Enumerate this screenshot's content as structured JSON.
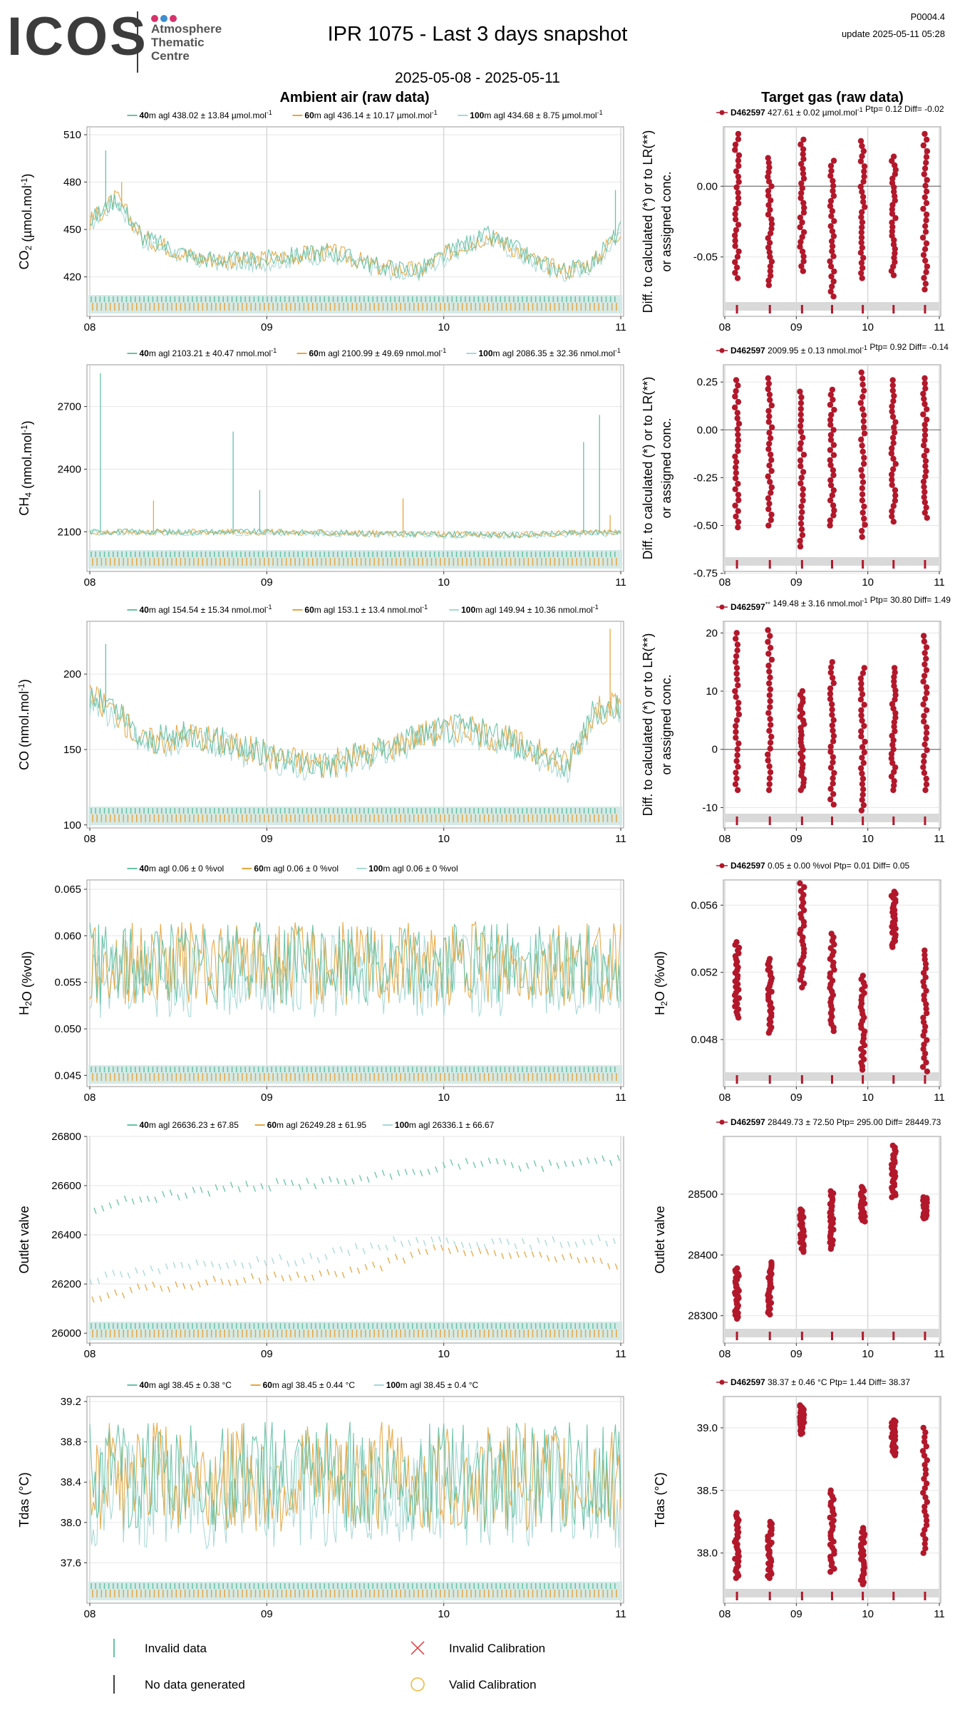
{
  "header": {
    "logo_text": "ICOS",
    "logo_subtitle": [
      "Atmosphere",
      "Thematic",
      "Centre"
    ],
    "logo_dot_colors": [
      "#d6336c",
      "#3b8ed0",
      "#d6336c"
    ],
    "title": "IPR 1075 - Last 3 days snapshot",
    "date_range": "2025-05-08 - 2025-05-11",
    "version": "P0004.4",
    "update": "update  2025-05-11 05:28",
    "left_heading": "Ambient air (raw data)",
    "right_heading": "Target gas (raw data)"
  },
  "colors": {
    "m40": "#66c2a5",
    "m60": "#e6a640",
    "m100": "#a6d8d4",
    "target": "#b2182b",
    "grid": "#e6e6e6",
    "band": "#d5eae7",
    "band_gray": "#d9d9d9"
  },
  "chart_data": [
    {
      "type": "line",
      "id": "co2-ambient",
      "ylabel_main": "CO",
      "ylabel_sub": "2",
      "ylabel_unit": " (µmol.mol",
      "ylabel_sup": "-1",
      "ylabel_end": ")",
      "x_ticks": [
        "08",
        "09",
        "10",
        "11"
      ],
      "ylim": [
        395,
        515
      ],
      "y_ticks": [
        420,
        450,
        480,
        510
      ],
      "legend": [
        {
          "height": "40",
          "text": "m agl 438.02 ± 13.84 µmol.mol",
          "sup": "-1"
        },
        {
          "height": "60",
          "text": "m agl 436.14 ± 10.17 µmol.mol",
          "sup": "-1"
        },
        {
          "height": "100",
          "text": "m agl 434.68 ± 8.75 µmol.mol",
          "sup": "-1"
        }
      ],
      "profile": [
        [
          0,
          455
        ],
        [
          0.05,
          470
        ],
        [
          0.1,
          445
        ],
        [
          0.2,
          432
        ],
        [
          0.3,
          430
        ],
        [
          0.45,
          436
        ],
        [
          0.55,
          426
        ],
        [
          0.62,
          424
        ],
        [
          0.7,
          440
        ],
        [
          0.75,
          446
        ],
        [
          0.8,
          438
        ],
        [
          0.85,
          428
        ],
        [
          0.9,
          424
        ],
        [
          0.95,
          430
        ],
        [
          1,
          450
        ]
      ],
      "noise": 6,
      "spikes": [
        [
          0.03,
          500
        ],
        [
          0.06,
          480
        ],
        [
          0.99,
          475
        ]
      ]
    },
    {
      "type": "line",
      "id": "ch4-ambient",
      "ylabel_main": "CH",
      "ylabel_sub": "4",
      "ylabel_unit": " (nmol.mol",
      "ylabel_sup": "-1",
      "ylabel_end": ")",
      "x_ticks": [
        "08",
        "09",
        "10",
        "11"
      ],
      "ylim": [
        1910,
        2900
      ],
      "y_ticks": [
        2100,
        2400,
        2700
      ],
      "legend": [
        {
          "height": "40",
          "text": "m agl 2103.21 ± 40.47 nmol.mol",
          "sup": "-1"
        },
        {
          "height": "60",
          "text": "m agl 2100.99 ± 49.69 nmol.mol",
          "sup": "-1"
        },
        {
          "height": "100",
          "text": "m agl 2086.35 ± 32.36 nmol.mol",
          "sup": "-1"
        }
      ],
      "profile": [
        [
          0,
          2100
        ],
        [
          0.3,
          2100
        ],
        [
          0.6,
          2090
        ],
        [
          0.8,
          2085
        ],
        [
          1,
          2100
        ]
      ],
      "noise": 15,
      "spikes": [
        [
          0.02,
          2860
        ],
        [
          0.12,
          2250
        ],
        [
          0.27,
          2580
        ],
        [
          0.32,
          2300
        ],
        [
          0.59,
          2260
        ],
        [
          0.93,
          2530
        ],
        [
          0.96,
          2660
        ],
        [
          0.98,
          2180
        ]
      ]
    },
    {
      "type": "line",
      "id": "co-ambient",
      "ylabel_main": "CO",
      "ylabel_sub": "",
      "ylabel_unit": " (nmol.mol",
      "ylabel_sup": "-1",
      "ylabel_end": ")",
      "x_ticks": [
        "08",
        "09",
        "10",
        "11"
      ],
      "ylim": [
        98,
        235
      ],
      "y_ticks": [
        100,
        150,
        200
      ],
      "legend": [
        {
          "height": "40",
          "text": "m agl 154.54 ± 15.34 nmol.mol",
          "sup": "-1"
        },
        {
          "height": "60",
          "text": "m agl 153.1 ± 13.4 nmol.mol",
          "sup": "-1"
        },
        {
          "height": "100",
          "text": "m agl 149.94 ± 10.36 nmol.mol",
          "sup": "-1"
        }
      ],
      "profile": [
        [
          0,
          185
        ],
        [
          0.05,
          175
        ],
        [
          0.1,
          155
        ],
        [
          0.2,
          160
        ],
        [
          0.35,
          145
        ],
        [
          0.45,
          140
        ],
        [
          0.55,
          150
        ],
        [
          0.62,
          160
        ],
        [
          0.7,
          165
        ],
        [
          0.8,
          155
        ],
        [
          0.9,
          140
        ],
        [
          0.95,
          175
        ],
        [
          1,
          180
        ]
      ],
      "noise": 10,
      "spikes": [
        [
          0.03,
          220
        ],
        [
          0.98,
          230
        ]
      ]
    },
    {
      "type": "line",
      "id": "h2o-ambient",
      "ylabel_main": "H",
      "ylabel_sub": "2",
      "ylabel_unit": "O (%vol)",
      "ylabel_sup": "",
      "ylabel_end": "",
      "x_ticks": [
        "08",
        "09",
        "10",
        "11"
      ],
      "ylim": [
        0.0438,
        0.066
      ],
      "y_ticks": [
        0.045,
        0.05,
        0.055,
        0.06,
        0.065
      ],
      "y_tick_labels": [
        "0.045",
        "0.050",
        "0.055",
        "0.060",
        "0.065"
      ],
      "legend": [
        {
          "height": "40",
          "text": "m agl 0.06 ± 0 %vol",
          "sup": ""
        },
        {
          "height": "60",
          "text": "m agl 0.06 ± 0 %vol",
          "sup": ""
        },
        {
          "height": "100",
          "text": "m agl 0.06 ± 0 %vol",
          "sup": ""
        }
      ],
      "profile": [
        [
          0,
          0.057
        ],
        [
          0.5,
          0.057
        ],
        [
          1,
          0.057
        ]
      ],
      "noise": 0.0045,
      "spikes": []
    },
    {
      "type": "line",
      "id": "outlet-ambient",
      "ylabel_main": "Outlet valve",
      "ylabel_sub": "",
      "ylabel_unit": "",
      "ylabel_sup": "",
      "ylabel_end": "",
      "x_ticks": [
        "08",
        "09",
        "10",
        "11"
      ],
      "ylim": [
        25960,
        26800
      ],
      "y_ticks": [
        26000,
        26200,
        26400,
        26600,
        26800
      ],
      "legend": [
        {
          "height": "40",
          "text": "m agl 26636.23 ± 67.85",
          "sup": ""
        },
        {
          "height": "60",
          "text": "m agl 26249.28 ± 61.95",
          "sup": ""
        },
        {
          "height": "100",
          "text": "m agl 26336.1 ± 66.67",
          "sup": ""
        }
      ],
      "levels": {
        "m40": [
          [
            0,
            26500
          ],
          [
            0.1,
            26550
          ],
          [
            0.3,
            26600
          ],
          [
            0.5,
            26620
          ],
          [
            0.7,
            26690
          ],
          [
            0.85,
            26680
          ],
          [
            1,
            26710
          ]
        ],
        "m60": [
          [
            0,
            26130
          ],
          [
            0.1,
            26180
          ],
          [
            0.3,
            26220
          ],
          [
            0.5,
            26250
          ],
          [
            0.65,
            26340
          ],
          [
            0.8,
            26320
          ],
          [
            1,
            26280
          ]
        ],
        "m100": [
          [
            0,
            26220
          ],
          [
            0.2,
            26280
          ],
          [
            0.4,
            26300
          ],
          [
            0.6,
            26380
          ],
          [
            0.8,
            26360
          ],
          [
            1,
            26380
          ]
        ]
      },
      "noise": 30,
      "spikes": []
    },
    {
      "type": "line",
      "id": "tdas-ambient",
      "ylabel_main": "Tdas (°C)",
      "ylabel_sub": "",
      "ylabel_unit": "",
      "ylabel_sup": "",
      "ylabel_end": "",
      "x_ticks": [
        "08",
        "09",
        "10",
        "11"
      ],
      "ylim": [
        37.2,
        39.25
      ],
      "y_ticks": [
        37.6,
        38.0,
        38.4,
        38.8,
        39.2
      ],
      "y_tick_labels": [
        "37.6",
        "38.0",
        "38.4",
        "38.8",
        "39.2"
      ],
      "legend": [
        {
          "height": "40",
          "text": "m agl 38.45 ± 0.38 °C",
          "sup": ""
        },
        {
          "height": "60",
          "text": "m agl 38.45 ± 0.44 °C",
          "sup": ""
        },
        {
          "height": "100",
          "text": "m agl 38.45 ± 0.4 °C",
          "sup": ""
        }
      ],
      "profile": [
        [
          0,
          38.45
        ],
        [
          1,
          38.45
        ]
      ],
      "noise": 0.55,
      "spikes": []
    },
    {
      "type": "scatter",
      "id": "co2-target",
      "ylabel_lines": [
        "Diff. to calculated (*) or to LR(**)",
        "or assigned conc."
      ],
      "x_ticks": [
        "08",
        "09",
        "10",
        "11"
      ],
      "ylim": [
        -0.092,
        0.042
      ],
      "y_ticks": [
        -0.05,
        0.0
      ],
      "y_tick_labels": [
        "-0.05",
        "0.00"
      ],
      "zero_line": true,
      "legend": {
        "id": "D462597",
        "sup": "",
        "text": " 427.61 ± 0.02 µmol.mol",
        "unit_sup": "-1",
        "tail": " Ptp= 0.12 Diff= -0.02"
      },
      "clusters": [
        [
          0.17,
          -0.065,
          0.037
        ],
        [
          0.63,
          -0.07,
          0.02
        ],
        [
          1.08,
          -0.06,
          0.033
        ],
        [
          1.5,
          -0.078,
          0.018
        ],
        [
          1.93,
          -0.065,
          0.032
        ],
        [
          2.36,
          -0.063,
          0.021
        ],
        [
          2.8,
          -0.073,
          0.037
        ]
      ]
    },
    {
      "type": "scatter",
      "id": "ch4-target",
      "ylabel_lines": [
        "Diff. to calculated (*) or to LR(**)",
        "or assigned conc."
      ],
      "x_ticks": [
        "08",
        "09",
        "10",
        "11"
      ],
      "ylim": [
        -0.74,
        0.34
      ],
      "y_ticks": [
        -0.75,
        -0.5,
        -0.25,
        0.0,
        0.25
      ],
      "y_tick_labels": [
        "-0.75",
        "-0.50",
        "-0.25",
        "0.00",
        "0.25"
      ],
      "zero_line": true,
      "legend": {
        "id": "D462597",
        "sup": "",
        "text": " 2009.95 ± 0.13 nmol.mol",
        "unit_sup": "-1",
        "tail": " Ptp= 0.92 Diff= -0.14"
      },
      "clusters": [
        [
          0.17,
          -0.51,
          0.26
        ],
        [
          0.63,
          -0.5,
          0.27
        ],
        [
          1.08,
          -0.61,
          0.2
        ],
        [
          1.5,
          -0.5,
          0.21
        ],
        [
          1.93,
          -0.56,
          0.3
        ],
        [
          2.36,
          -0.48,
          0.26
        ],
        [
          2.8,
          -0.46,
          0.27
        ]
      ]
    },
    {
      "type": "scatter",
      "id": "co-target",
      "ylabel_lines": [
        "Diff. to calculated (*) or to LR(**)",
        "or assigned conc."
      ],
      "x_ticks": [
        "08",
        "09",
        "10",
        "11"
      ],
      "ylim": [
        -13.5,
        22
      ],
      "y_ticks": [
        -10,
        0,
        10,
        20
      ],
      "y_tick_labels": [
        "-10",
        "0",
        "10",
        "20"
      ],
      "zero_line": true,
      "legend": {
        "id": "D462597",
        "sup": "**",
        "text": " 149.48 ± 3.16 nmol.mol",
        "unit_sup": "-1",
        "tail": " Ptp= 30.80 Diff= 1.49"
      },
      "clusters": [
        [
          0.17,
          -7,
          20
        ],
        [
          0.63,
          -7,
          20.5
        ],
        [
          1.08,
          -7,
          10
        ],
        [
          1.5,
          -9.5,
          15
        ],
        [
          1.93,
          -10.5,
          14
        ],
        [
          2.36,
          -7,
          14
        ],
        [
          2.8,
          -7,
          19.5
        ]
      ]
    },
    {
      "type": "scatter",
      "id": "h2o-target",
      "ylabel_main": "H",
      "ylabel_sub": "2",
      "ylabel_unit": "O (%vol)",
      "x_ticks": [
        "08",
        "09",
        "10",
        "11"
      ],
      "ylim": [
        0.0452,
        0.0575
      ],
      "y_ticks": [
        0.048,
        0.052,
        0.056
      ],
      "y_tick_labels": [
        "0.048",
        "0.052",
        "0.056"
      ],
      "zero_line": false,
      "legend": {
        "id": "D462597",
        "sup": "",
        "text": " 0.05 ± 0.00 %vol",
        "unit_sup": "",
        "tail": " Ptp= 0.01 Diff= 0.05"
      },
      "clusters": [
        [
          0.17,
          0.0493,
          0.0538
        ],
        [
          0.63,
          0.0484,
          0.0528
        ],
        [
          1.08,
          0.0511,
          0.0573
        ],
        [
          1.5,
          0.0485,
          0.0543
        ],
        [
          1.93,
          0.0462,
          0.0518
        ],
        [
          2.36,
          0.0535,
          0.0568
        ],
        [
          2.8,
          0.0461,
          0.0533
        ]
      ]
    },
    {
      "type": "scatter",
      "id": "outlet-target",
      "ylabel_main": "Outlet valve",
      "x_ticks": [
        "08",
        "09",
        "10",
        "11"
      ],
      "ylim": [
        28255,
        28595
      ],
      "y_ticks": [
        28300,
        28400,
        28500
      ],
      "y_tick_labels": [
        "28300",
        "28400",
        "28500"
      ],
      "zero_line": false,
      "legend": {
        "id": "D462597",
        "sup": "",
        "text": " 28449.73 ± 72.50",
        "unit_sup": "",
        "tail": "  Ptp= 295.00 Diff= 28449.73"
      },
      "clusters": [
        [
          0.17,
          28295,
          28378
        ],
        [
          0.63,
          28302,
          28388
        ],
        [
          1.08,
          28405,
          28475
        ],
        [
          1.5,
          28410,
          28505
        ],
        [
          1.93,
          28455,
          28512
        ],
        [
          2.36,
          28495,
          28580
        ],
        [
          2.8,
          28460,
          28495
        ]
      ]
    },
    {
      "type": "scatter",
      "id": "tdas-target",
      "ylabel_main": "Tdas (°C)",
      "x_ticks": [
        "08",
        "09",
        "10",
        "11"
      ],
      "ylim": [
        37.6,
        39.25
      ],
      "y_ticks": [
        38.0,
        38.5,
        39.0
      ],
      "y_tick_labels": [
        "38.0",
        "38.5",
        "39.0"
      ],
      "zero_line": false,
      "legend": {
        "id": "D462597",
        "sup": "",
        "text": " 38.37 ± 0.46 °C",
        "unit_sup": "",
        "tail": " Ptp= 1.44 Diff= 38.37"
      },
      "clusters": [
        [
          0.17,
          37.8,
          38.32
        ],
        [
          0.63,
          37.8,
          38.25
        ],
        [
          1.08,
          38.95,
          39.18
        ],
        [
          1.5,
          37.85,
          38.5
        ],
        [
          1.93,
          37.75,
          38.2
        ],
        [
          2.36,
          38.78,
          39.06
        ],
        [
          2.8,
          38.0,
          39.0
        ]
      ]
    }
  ],
  "bottom_legend": {
    "invalid_data": "Invalid data",
    "no_data": "No data generated",
    "invalid_calibration": "Invalid Calibration",
    "valid_calibration": "Valid Calibration"
  }
}
